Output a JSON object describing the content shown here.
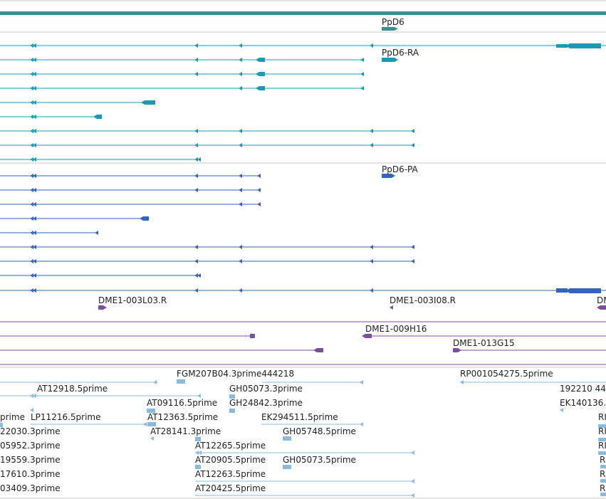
{
  "colors": {
    "gene": "#3a8f8f",
    "mrna_ra": "#1a9bb5",
    "mrna_pa": "#3366bb",
    "clone": "#7a4fa0",
    "est": "#88bbdd",
    "separator": "#c8c8c8",
    "text": "#222222"
  },
  "gene_track": {
    "label": "PpD6"
  },
  "transcript_ra": {
    "label": "PpD6-RA"
  },
  "transcript_pa": {
    "label": "PpD6-PA"
  },
  "clones": {
    "labels": [
      "DME1-003L03.R",
      "DME1-003I08.R",
      "DM",
      "DME1-009H16",
      "DME1-013G15"
    ]
  },
  "ests": {
    "labels": [
      "FGM207B04.3prime444218",
      "RP001054275.5prime",
      "AT12918.5prime",
      "GH05073.3prime",
      "192210 44",
      "AT09116.5prime",
      "GH24842.3prime",
      "EK140136.",
      "prime",
      "LP11216.5prime",
      "AT12363.5prime",
      "EK294511.5prime",
      "RI",
      "22030.3prime",
      "AT28141.3prime",
      "GH05748.5prime",
      "RI",
      "05952.3prime",
      "AT12265.5prime",
      "RI",
      "19559.3prime",
      "AT20905.5prime",
      "GH05073.5prime",
      "R",
      "17610.3prime",
      "AT12263.5prime",
      "R",
      "03409.3prime",
      "AT20425.5prime",
      "R"
    ]
  }
}
